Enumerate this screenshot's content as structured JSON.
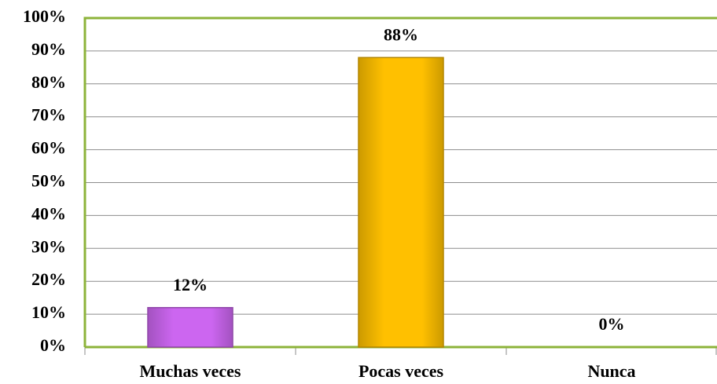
{
  "chart_data": {
    "type": "bar",
    "categories": [
      "Muchas veces",
      "Pocas veces",
      "Nunca"
    ],
    "values": [
      12,
      88,
      0
    ],
    "value_labels": [
      "12%",
      "88%",
      "0%"
    ],
    "colors": [
      "#cc66f0",
      "#ffc000",
      "#4f81bd"
    ],
    "ylim": [
      0,
      100
    ],
    "yticks": [
      {
        "value": 0,
        "label": "0%"
      },
      {
        "value": 10,
        "label": "10%"
      },
      {
        "value": 20,
        "label": "20%"
      },
      {
        "value": 30,
        "label": "30%"
      },
      {
        "value": 40,
        "label": "40%"
      },
      {
        "value": 50,
        "label": "50%"
      },
      {
        "value": 60,
        "label": "60%"
      },
      {
        "value": 70,
        "label": "70%"
      },
      {
        "value": 80,
        "label": "80%"
      },
      {
        "value": 90,
        "label": "90%"
      },
      {
        "value": 100,
        "label": "100%"
      }
    ],
    "grid": true
  }
}
